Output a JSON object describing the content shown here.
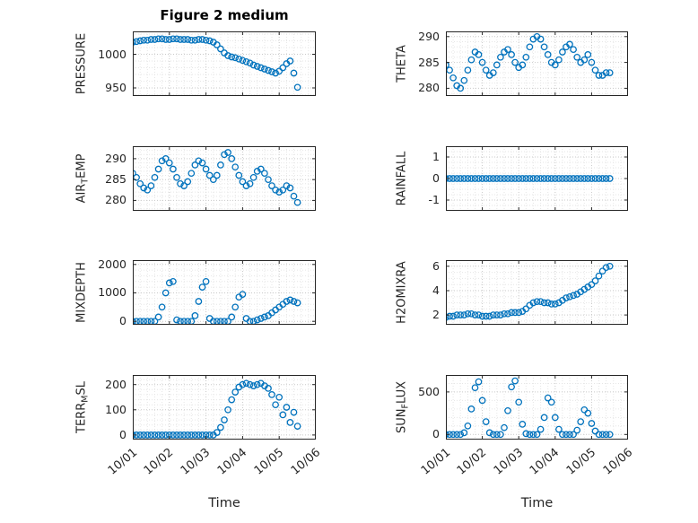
{
  "figure": {
    "title": "Figure 2 medium",
    "marker_color": "#0072BD",
    "axis_color": "#262626",
    "grid_major_color": "#c9c9c9",
    "grid_minor_color": "#e6e6e6",
    "background": "#ffffff"
  },
  "chart_data": {
    "type": "scatter",
    "title": "Figure 2 medium",
    "xlabel": "Time",
    "xlim": [
      0,
      5
    ],
    "x_ticks": [
      0,
      1,
      2,
      3,
      4,
      5
    ],
    "x_tick_labels": [
      "10/01",
      "10/02",
      "10/03",
      "10/04",
      "10/05",
      "10/06"
    ],
    "x_unit": "days since 10/01",
    "grid": "major+minor dotted",
    "marker": "open circle",
    "x": [
      0,
      0.1,
      0.2,
      0.3,
      0.4,
      0.5,
      0.6,
      0.7,
      0.8,
      0.9,
      1,
      1.1,
      1.2,
      1.3,
      1.4,
      1.5,
      1.6,
      1.7,
      1.8,
      1.9,
      2,
      2.1,
      2.2,
      2.3,
      2.4,
      2.5,
      2.6,
      2.7,
      2.8,
      2.9,
      3,
      3.1,
      3.2,
      3.3,
      3.4,
      3.5,
      3.6,
      3.7,
      3.8,
      3.9,
      4,
      4.1,
      4.2,
      4.3,
      4.4,
      4.5
    ],
    "series": [
      {
        "name": "PRESSURE",
        "row": 0,
        "col": 0,
        "label_parts": [
          {
            "t": "PRESSURE",
            "sub": false
          }
        ],
        "yticks": [
          950,
          1000
        ],
        "ylim": [
          938,
          1034
        ],
        "yminor": 10,
        "values": [
          1018,
          1019,
          1020,
          1021,
          1021,
          1022,
          1022,
          1023,
          1023,
          1022,
          1022,
          1023,
          1023,
          1022,
          1022,
          1022,
          1021,
          1021,
          1022,
          1022,
          1021,
          1020,
          1018,
          1014,
          1008,
          1002,
          998,
          996,
          995,
          993,
          991,
          989,
          987,
          984,
          982,
          980,
          978,
          976,
          974,
          972,
          975,
          980,
          986,
          990,
          972,
          951
        ]
      },
      {
        "name": "THETA",
        "row": 0,
        "col": 1,
        "label_parts": [
          {
            "t": "THETA",
            "sub": false
          }
        ],
        "yticks": [
          280,
          285,
          290
        ],
        "ylim": [
          278.5,
          291
        ],
        "yminor": 1,
        "values": [
          284.5,
          283.5,
          282,
          280.5,
          280,
          281.5,
          283.5,
          285.5,
          287,
          286.5,
          285,
          283.5,
          282.5,
          283,
          284.5,
          286,
          287,
          287.5,
          286.5,
          285,
          284,
          284.5,
          286,
          288,
          289.5,
          290,
          289.5,
          288,
          286.5,
          285,
          284.5,
          285.5,
          287,
          288,
          288.5,
          287.5,
          286,
          285,
          285.5,
          286.5,
          285,
          283.5,
          282.5,
          282.5,
          283,
          283
        ]
      },
      {
        "name": "AIR_TEMP",
        "row": 1,
        "col": 0,
        "label_parts": [
          {
            "t": "AIR",
            "sub": false
          },
          {
            "t": "T",
            "sub": true
          },
          {
            "t": "EMP",
            "sub": false
          }
        ],
        "yticks": [
          280,
          285,
          290
        ],
        "ylim": [
          277.5,
          293
        ],
        "yminor": 1,
        "values": [
          286.5,
          285.5,
          284,
          283,
          282.5,
          283.5,
          285.5,
          287.5,
          289.5,
          290,
          289,
          287.5,
          285.5,
          284,
          283.5,
          284.5,
          286.5,
          288.5,
          289.5,
          289,
          287.5,
          286,
          285,
          286,
          288.5,
          291,
          291.5,
          290,
          288,
          286,
          284.5,
          283.5,
          284,
          285.5,
          287,
          287.5,
          286.5,
          285,
          283.5,
          282.5,
          282,
          282.5,
          283.5,
          283,
          281,
          279.5
        ]
      },
      {
        "name": "RAINFALL",
        "row": 1,
        "col": 1,
        "label_parts": [
          {
            "t": "RAINFALL",
            "sub": false
          }
        ],
        "yticks": [
          -1,
          0,
          1
        ],
        "ylim": [
          -1.5,
          1.5
        ],
        "yminor": 0.25,
        "values": [
          0,
          0,
          0,
          0,
          0,
          0,
          0,
          0,
          0,
          0,
          0,
          0,
          0,
          0,
          0,
          0,
          0,
          0,
          0,
          0,
          0,
          0,
          0,
          0,
          0,
          0,
          0,
          0,
          0,
          0,
          0,
          0,
          0,
          0,
          0,
          0,
          0,
          0,
          0,
          0,
          0,
          0,
          0,
          0,
          0,
          0
        ]
      },
      {
        "name": "MIXDEPTH",
        "row": 2,
        "col": 0,
        "label_parts": [
          {
            "t": "MIXDEPTH",
            "sub": false
          }
        ],
        "yticks": [
          0,
          1000,
          2000
        ],
        "ylim": [
          -120,
          2150
        ],
        "yminor": 200,
        "values": [
          0,
          0,
          0,
          0,
          0,
          0,
          0,
          150,
          500,
          1000,
          1350,
          1400,
          50,
          0,
          0,
          0,
          0,
          200,
          700,
          1200,
          1400,
          100,
          0,
          0,
          0,
          0,
          0,
          150,
          500,
          850,
          950,
          100,
          0,
          0,
          50,
          100,
          150,
          200,
          300,
          400,
          500,
          600,
          700,
          750,
          700,
          650
        ]
      },
      {
        "name": "H2OMIXRA",
        "row": 2,
        "col": 1,
        "label_parts": [
          {
            "t": "H2OMIXRA",
            "sub": false
          }
        ],
        "yticks": [
          2,
          4,
          6
        ],
        "ylim": [
          1.2,
          6.5
        ],
        "yminor": 0.5,
        "values": [
          1.8,
          1.9,
          1.9,
          2,
          2,
          2,
          2.1,
          2.1,
          2,
          2,
          1.9,
          1.9,
          1.9,
          2,
          2,
          2,
          2.1,
          2.1,
          2.2,
          2.2,
          2.2,
          2.3,
          2.5,
          2.8,
          3,
          3.1,
          3.1,
          3,
          3,
          2.9,
          2.9,
          3,
          3.2,
          3.4,
          3.5,
          3.6,
          3.7,
          3.9,
          4.1,
          4.3,
          4.5,
          4.8,
          5.2,
          5.6,
          5.9,
          6
        ]
      },
      {
        "name": "TERR_MSL",
        "row": 3,
        "col": 0,
        "label_parts": [
          {
            "t": "TERR",
            "sub": false
          },
          {
            "t": "M",
            "sub": true
          },
          {
            "t": "SL",
            "sub": false
          }
        ],
        "yticks": [
          0,
          100,
          200
        ],
        "ylim": [
          -18,
          238
        ],
        "yminor": 20,
        "values": [
          0,
          0,
          0,
          0,
          0,
          0,
          0,
          0,
          0,
          0,
          0,
          0,
          0,
          0,
          0,
          0,
          0,
          0,
          0,
          0,
          0,
          0,
          0,
          10,
          30,
          60,
          100,
          140,
          170,
          190,
          200,
          205,
          200,
          195,
          200,
          205,
          195,
          185,
          160,
          120,
          150,
          80,
          110,
          50,
          90,
          35
        ]
      },
      {
        "name": "SUN_FLUX",
        "row": 3,
        "col": 1,
        "label_parts": [
          {
            "t": "SUN",
            "sub": false
          },
          {
            "t": "F",
            "sub": true
          },
          {
            "t": "LUX",
            "sub": false
          }
        ],
        "yticks": [
          0,
          500
        ],
        "ylim": [
          -60,
          700
        ],
        "yminor": 100,
        "values": [
          0,
          0,
          0,
          0,
          0,
          20,
          100,
          300,
          550,
          620,
          400,
          150,
          20,
          0,
          0,
          0,
          80,
          280,
          560,
          630,
          380,
          120,
          10,
          0,
          0,
          0,
          60,
          200,
          430,
          380,
          200,
          60,
          0,
          0,
          0,
          0,
          50,
          150,
          290,
          250,
          130,
          40,
          0,
          0,
          0,
          0
        ]
      }
    ]
  }
}
